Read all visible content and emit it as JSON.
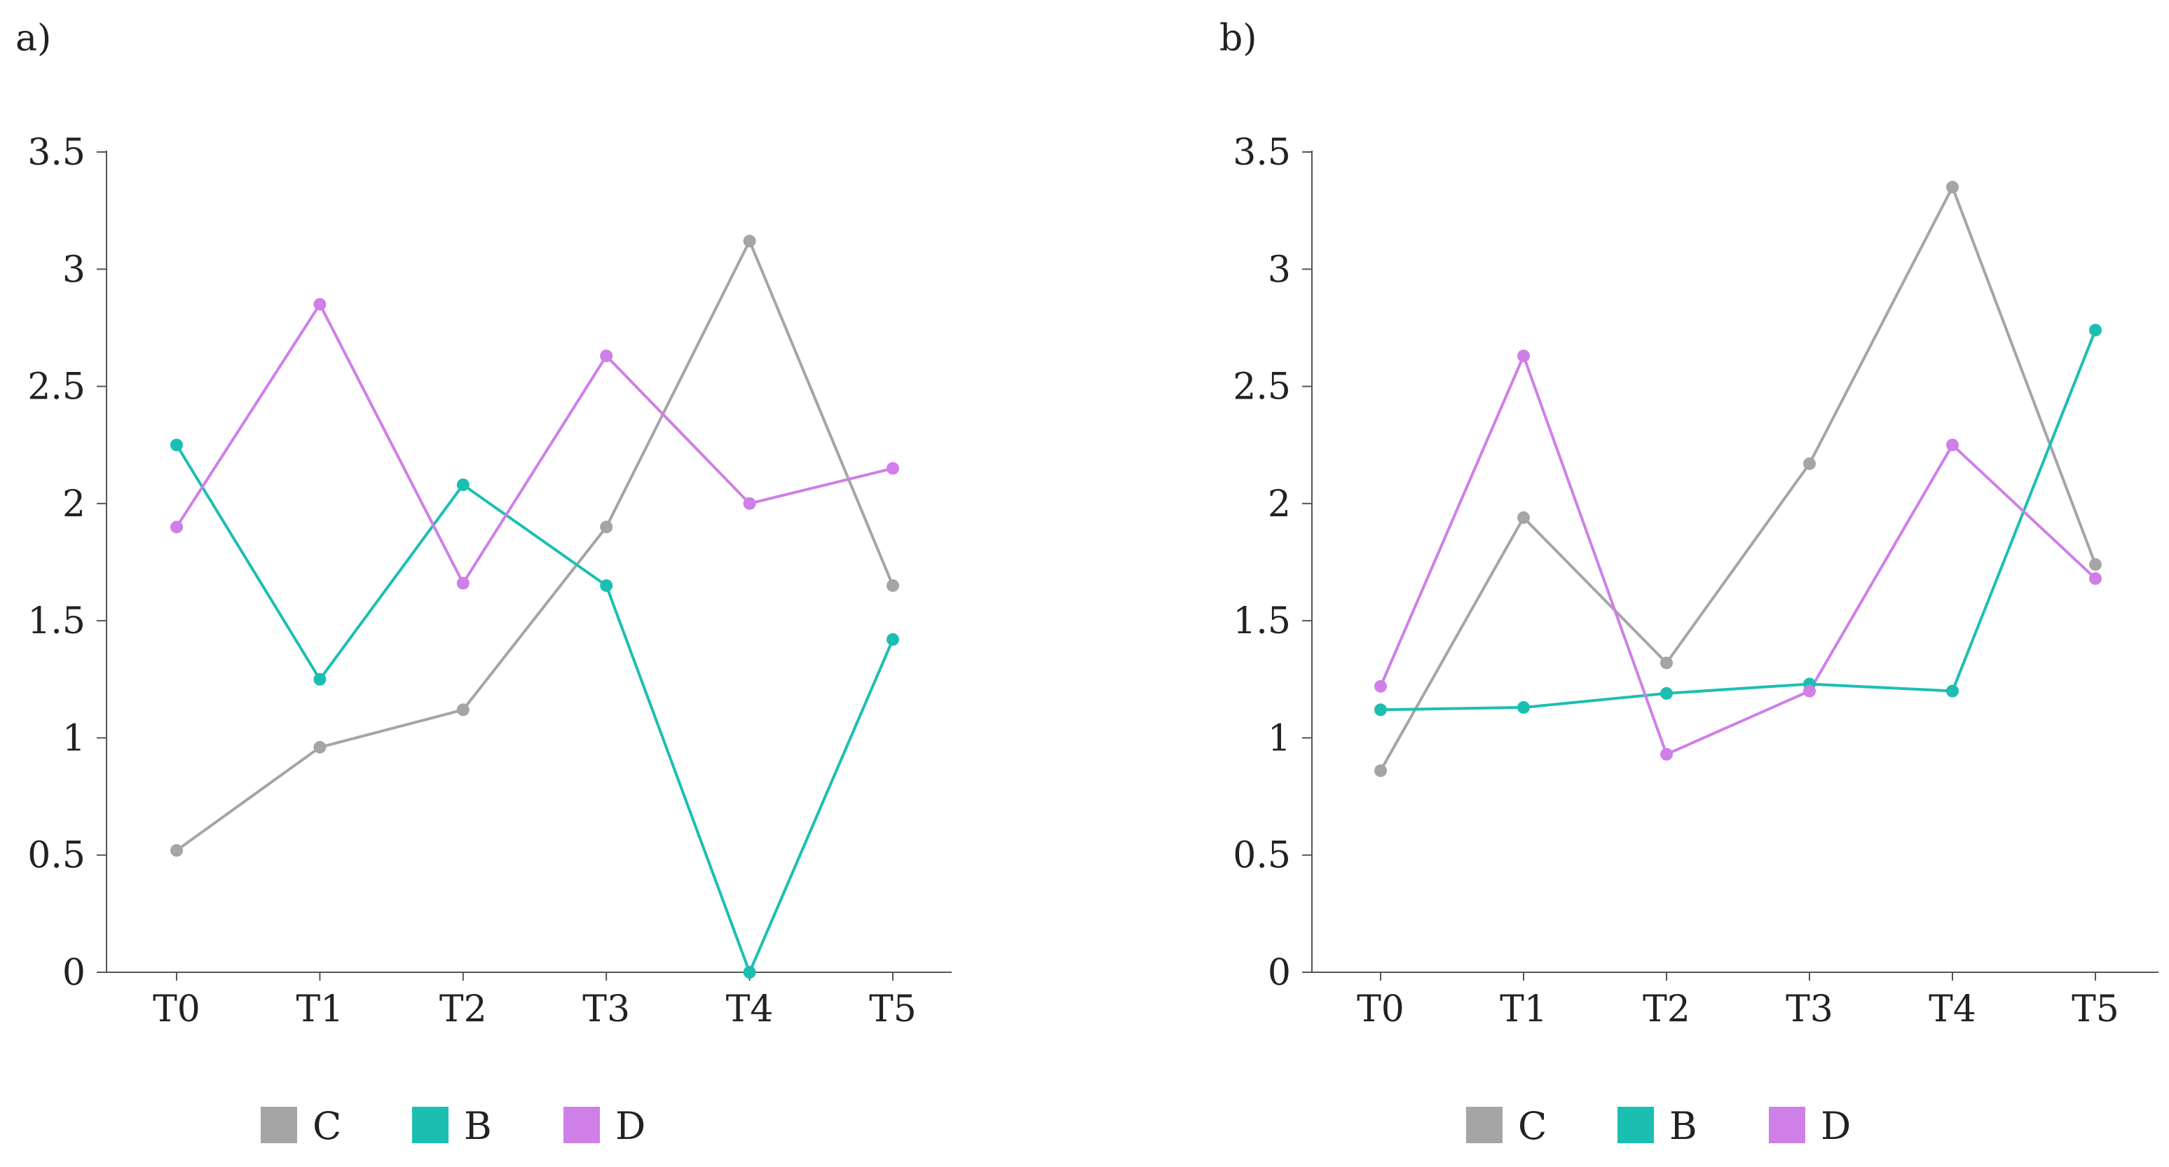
{
  "chart_data": [
    {
      "panel_label": "a)",
      "type": "line",
      "categories": [
        "T0",
        "T1",
        "T2",
        "T3",
        "T4",
        "T5"
      ],
      "ylim": [
        0,
        3.5
      ],
      "yticks": [
        "0",
        "0.5",
        "1",
        "1.5",
        "2",
        "2.5",
        "3",
        "3.5"
      ],
      "grid": false,
      "legend": "bottom",
      "series": [
        {
          "name": "C",
          "color": "#a5a5a5",
          "values": [
            0.52,
            0.96,
            1.12,
            1.9,
            3.12,
            1.65
          ]
        },
        {
          "name": "B",
          "color": "#1bbfb2",
          "values": [
            2.25,
            1.25,
            2.08,
            1.65,
            0.0,
            1.42
          ]
        },
        {
          "name": "D",
          "color": "#cf7fe8",
          "values": [
            1.9,
            2.85,
            1.66,
            2.63,
            2.0,
            2.15
          ]
        }
      ]
    },
    {
      "panel_label": "b)",
      "type": "line",
      "categories": [
        "T0",
        "T1",
        "T2",
        "T3",
        "T4",
        "T5"
      ],
      "ylim": [
        0,
        3.5
      ],
      "yticks": [
        "0",
        "0.5",
        "1",
        "1.5",
        "2",
        "2.5",
        "3",
        "3.5"
      ],
      "grid": false,
      "legend": "bottom",
      "series": [
        {
          "name": "C",
          "color": "#a5a5a5",
          "values": [
            0.86,
            1.94,
            1.32,
            2.17,
            3.35,
            1.74
          ]
        },
        {
          "name": "B",
          "color": "#1bbfb2",
          "values": [
            1.12,
            1.13,
            1.19,
            1.23,
            1.2,
            2.74
          ]
        },
        {
          "name": "D",
          "color": "#cf7fe8",
          "values": [
            1.22,
            2.63,
            0.93,
            1.2,
            2.25,
            1.68
          ]
        }
      ]
    }
  ]
}
